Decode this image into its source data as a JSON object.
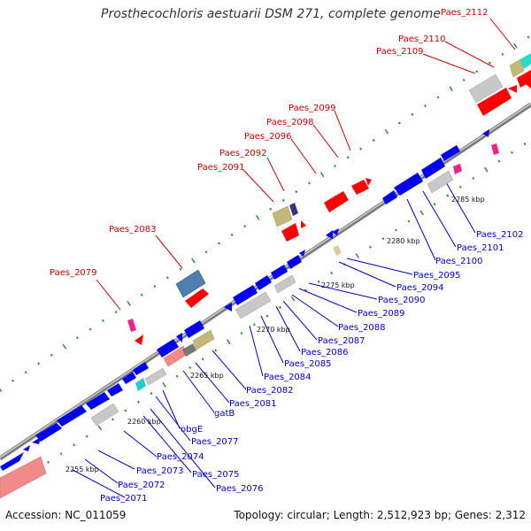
{
  "title": "Prosthecochloris aestuarii DSM 271, complete genome",
  "accession_label": "Accession: NC_011059",
  "summary_label": "Topology: circular; Length: 2,512,923 bp; Genes: 2,312",
  "colors": {
    "backbone": "#8c8c8c",
    "forward_cds": "#ff0000",
    "reverse_cds": "#0000ee",
    "forward_label": "#cc0000",
    "reverse_label": "#0000cc",
    "gray_feature": "#c8c8c8",
    "olive_feature": "#c2b87a",
    "steelblue_feature": "#4f7fb0",
    "salmon_feature": "#f28a8a",
    "magenta_feature": "#ee2288",
    "cyan_feature": "#22cccc",
    "navy_feature": "#333388",
    "tick": "#228822"
  },
  "scale_labels": [
    "2255 kbp",
    "2260 kbp",
    "2265 kbp",
    "2270 kbp",
    "2275 kbp",
    "2280 kbp",
    "2285 kbp"
  ],
  "forward_genes": [
    "Paes_2079",
    "Paes_2083",
    "Paes_2091",
    "Paes_2092",
    "Paes_2096",
    "Paes_2098",
    "Paes_2099",
    "Paes_2109",
    "Paes_2110",
    "Paes_2112"
  ],
  "reverse_genes": [
    "Paes_2071",
    "Paes_2072",
    "Paes_2073",
    "Paes_2074",
    "Paes_2075",
    "Paes_2076",
    "Paes_2077",
    "obgE",
    "gatB",
    "Paes_2081",
    "Paes_2082",
    "Paes_2084",
    "Paes_2085",
    "Paes_2086",
    "Paes_2087",
    "Paes_2088",
    "Paes_2089",
    "Paes_2090",
    "Paes_2094",
    "Paes_2095",
    "Paes_2100",
    "Paes_2101",
    "Paes_2102"
  ]
}
